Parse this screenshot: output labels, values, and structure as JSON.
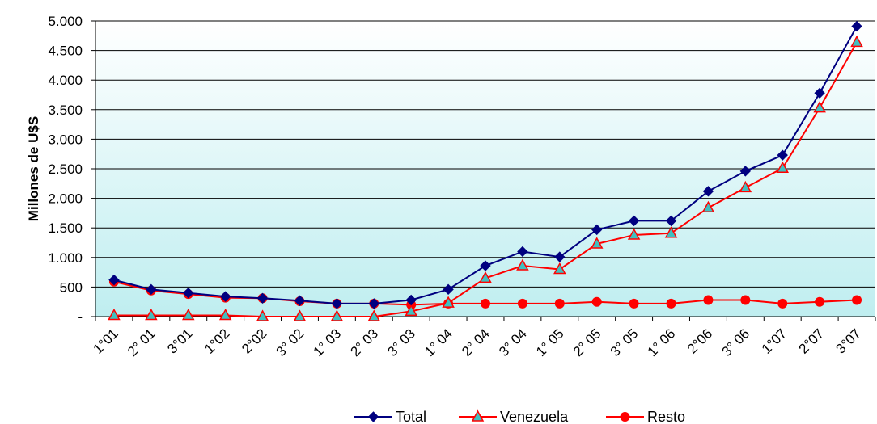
{
  "chart_data": {
    "type": "line",
    "ylabel": "Millones de U$S",
    "ylim": [
      0,
      5000
    ],
    "yticks": [
      0,
      500,
      1000,
      1500,
      2000,
      2500,
      3000,
      3500,
      4000,
      4500,
      5000
    ],
    "ytick_labels": [
      "-",
      "500",
      "1.000",
      "1.500",
      "2.000",
      "2.500",
      "3.000",
      "3.500",
      "4.000",
      "4.500",
      "5.000"
    ],
    "categories": [
      "1°01",
      "2° 01",
      "3°01",
      "1°02",
      "2°02",
      "3° 02",
      "1° 03",
      "2° 03",
      "3° 03",
      "1° 04",
      "2° 04",
      "3° 04",
      "1° 05",
      "2° 05",
      "3° 05",
      "1° 06",
      "2°06",
      "3° 06",
      "1°07",
      "2°07",
      "3°07"
    ],
    "series": [
      {
        "name": "Total",
        "color": "#000080",
        "marker": "diamond",
        "values": [
          620,
          460,
          400,
          340,
          310,
          270,
          220,
          220,
          280,
          460,
          860,
          1100,
          1010,
          1470,
          1620,
          1620,
          2120,
          2460,
          2730,
          3780,
          4910
        ]
      },
      {
        "name": "Venezuela",
        "color": "#ff0000",
        "marker": "triangle",
        "values": [
          20,
          20,
          20,
          20,
          0,
          0,
          0,
          0,
          90,
          230,
          650,
          860,
          800,
          1230,
          1380,
          1410,
          1840,
          2180,
          2510,
          3530,
          4640
        ]
      },
      {
        "name": "Resto",
        "color": "#ff0000",
        "marker": "circle",
        "values": [
          590,
          440,
          380,
          320,
          310,
          260,
          220,
          220,
          200,
          220,
          220,
          220,
          220,
          250,
          220,
          220,
          280,
          280,
          220,
          250,
          280
        ]
      }
    ],
    "legend_position": "bottom",
    "grid": true
  }
}
